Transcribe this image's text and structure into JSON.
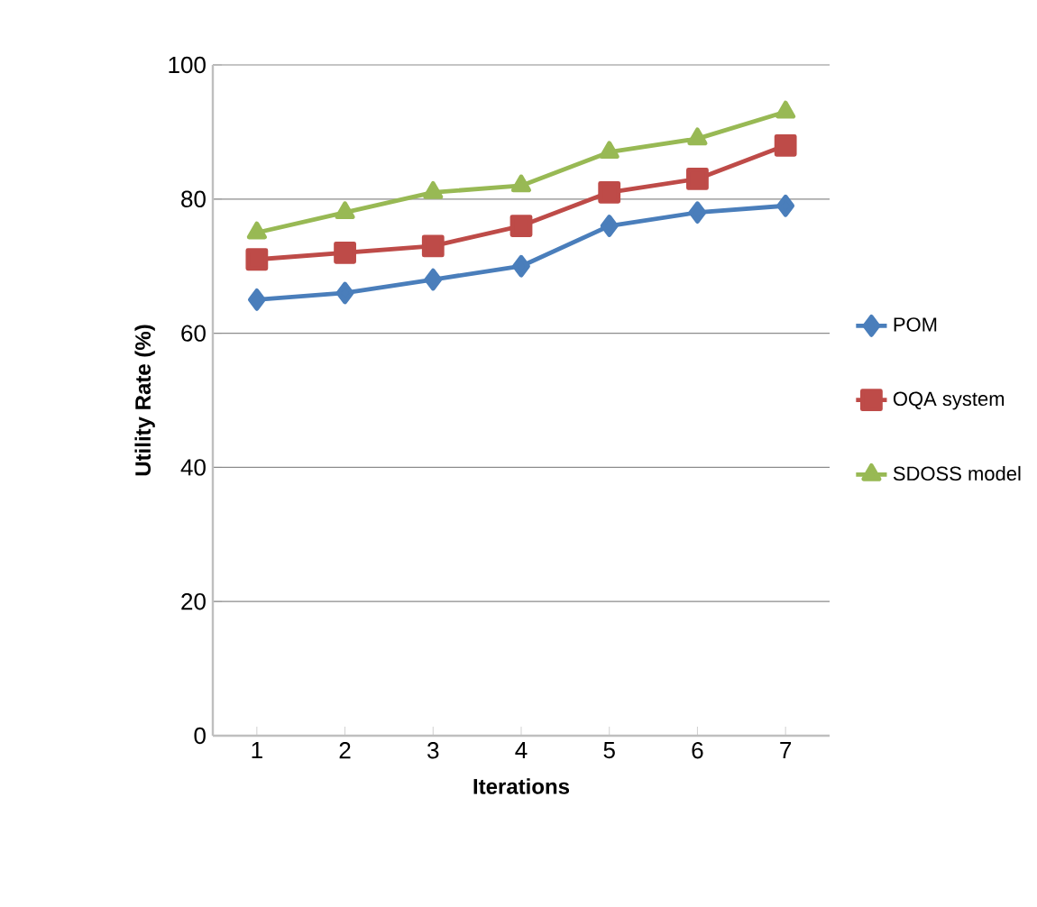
{
  "chart_data": {
    "type": "line",
    "xlabel": "Iterations",
    "ylabel": "Utility Rate (%)",
    "categories": [
      "1",
      "2",
      "3",
      "4",
      "5",
      "6",
      "7"
    ],
    "series": [
      {
        "name": "POM",
        "color": "#4a7ebb",
        "marker": "diamond",
        "values": [
          65,
          66,
          68,
          70,
          76,
          78,
          79
        ]
      },
      {
        "name": "OQA system",
        "color": "#be4b48",
        "marker": "square",
        "values": [
          71,
          72,
          73,
          76,
          81,
          83,
          88
        ]
      },
      {
        "name": "SDOSS model",
        "color": "#98b954",
        "marker": "triangle",
        "values": [
          75,
          78,
          81,
          82,
          87,
          89,
          93
        ]
      }
    ],
    "ylim": [
      0,
      100
    ],
    "yticks": [
      0,
      20,
      40,
      60,
      80,
      100
    ],
    "grid": "y",
    "legend": "right",
    "line_style": "solid"
  }
}
